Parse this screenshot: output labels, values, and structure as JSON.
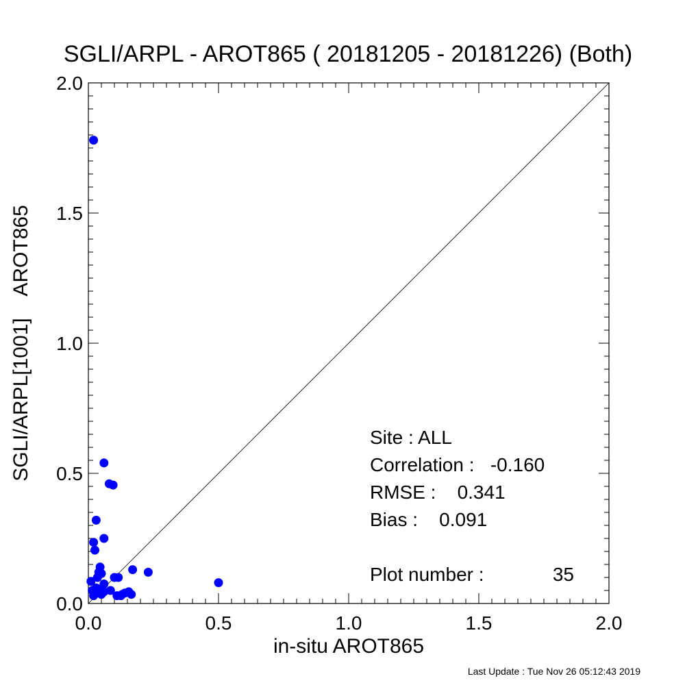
{
  "chart_data": {
    "type": "scatter",
    "title": "SGLI/ARPL - AROT865 ( 20181205 - 20181226) (Both)",
    "xlabel": "in-situ AROT865",
    "ylabel": "SGLI/ARPL[1001]    AROT865",
    "xlim": [
      0.0,
      2.0
    ],
    "ylim": [
      0.0,
      2.0
    ],
    "xticks": [
      "0.0",
      "0.5",
      "1.0",
      "1.5",
      "2.0"
    ],
    "yticks": [
      "0.0",
      "0.5",
      "1.0",
      "1.5",
      "2.0"
    ],
    "reference_line": "1:1",
    "marker_color": "#0000ff",
    "grid": false,
    "points": [
      {
        "x": 0.02,
        "y": 1.78
      },
      {
        "x": 0.06,
        "y": 0.54
      },
      {
        "x": 0.08,
        "y": 0.46
      },
      {
        "x": 0.095,
        "y": 0.455
      },
      {
        "x": 0.03,
        "y": 0.32
      },
      {
        "x": 0.06,
        "y": 0.25
      },
      {
        "x": 0.02,
        "y": 0.235
      },
      {
        "x": 0.025,
        "y": 0.205
      },
      {
        "x": 0.045,
        "y": 0.14
      },
      {
        "x": 0.17,
        "y": 0.13
      },
      {
        "x": 0.23,
        "y": 0.12
      },
      {
        "x": 0.04,
        "y": 0.12
      },
      {
        "x": 0.05,
        "y": 0.115
      },
      {
        "x": 0.035,
        "y": 0.1
      },
      {
        "x": 0.1,
        "y": 0.1
      },
      {
        "x": 0.115,
        "y": 0.1
      },
      {
        "x": 0.01,
        "y": 0.085
      },
      {
        "x": 0.5,
        "y": 0.08
      },
      {
        "x": 0.06,
        "y": 0.075
      },
      {
        "x": 0.03,
        "y": 0.06
      },
      {
        "x": 0.045,
        "y": 0.055
      },
      {
        "x": 0.015,
        "y": 0.05
      },
      {
        "x": 0.085,
        "y": 0.05
      },
      {
        "x": 0.025,
        "y": 0.045
      },
      {
        "x": 0.06,
        "y": 0.045
      },
      {
        "x": 0.155,
        "y": 0.045
      },
      {
        "x": 0.14,
        "y": 0.04
      },
      {
        "x": 0.04,
        "y": 0.04
      },
      {
        "x": 0.165,
        "y": 0.035
      },
      {
        "x": 0.13,
        "y": 0.035
      },
      {
        "x": 0.02,
        "y": 0.03
      },
      {
        "x": 0.11,
        "y": 0.03
      },
      {
        "x": 0.125,
        "y": 0.03
      },
      {
        "x": 0.05,
        "y": 0.035
      },
      {
        "x": 0.035,
        "y": 0.04
      }
    ]
  },
  "stats": {
    "site": "Site : ALL",
    "correlation": "Correlation :   -0.160",
    "rmse": "RMSE :    0.341",
    "bias": "Bias :    0.091",
    "plot_number_label": "Plot number :",
    "plot_number_value": "35"
  },
  "footer": "Last Update : Tue Nov 26 05:12:43 2019"
}
